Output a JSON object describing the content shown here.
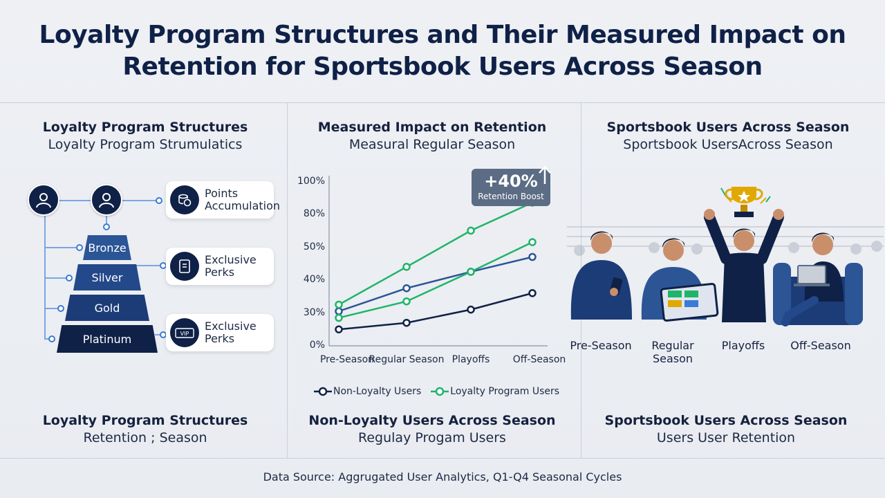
{
  "title": "Loyalty Program Structures and Their Measured Impact on Retention for Sportsbook Users Across Season",
  "panel1": {
    "head": "Loyalty Program Structures",
    "sub": "Loyalty Program Strumulatics",
    "tiers": [
      "Bronze",
      "Silver",
      "Gold",
      "Platinum"
    ],
    "cards": [
      {
        "line1": "Points",
        "line2": "Accumulation",
        "icon": "coins-icon"
      },
      {
        "line1": "Exclusive",
        "line2": "Perks",
        "icon": "gift-card-icon"
      },
      {
        "line1": "Exclusive",
        "line2": "Perks",
        "icon": "vip-ticket-icon"
      }
    ],
    "vip_text": "VIP",
    "foot_head": "Loyalty Program Structures",
    "foot_sub": "Retention ; Season"
  },
  "panel2": {
    "head": "Measured Impact on Retention",
    "sub": "Measural Regular Season",
    "badge_value": "+40%",
    "badge_label": "Retention Boost",
    "foot_head": "Non-Loyalty Users Across Season",
    "foot_sub": "Regulay Progam Users"
  },
  "panel3": {
    "head": "Sportsbook Users Across Season",
    "sub": "Sportsbook UsersAcross Season",
    "labels": [
      "Pre-Season",
      "Regular\nSeason",
      "Playoffs",
      "Off-Season"
    ],
    "foot_head": "Sportsbook Users Across Season",
    "foot_sub": "Users User Retention"
  },
  "source": "Data Source: Aggrugated User Analytics, Q1-Q4 Seasonal Cycles",
  "colors": {
    "navy": "#0f2147",
    "blue": "#2c5596",
    "green": "#1fb46a",
    "badge": "#5b6c84"
  },
  "chart_data": {
    "type": "line",
    "categories": [
      "Pre-Season",
      "Regular Season",
      "Playoffs",
      "Off-Season"
    ],
    "yticks": [
      "0%",
      "30%",
      "40%",
      "50%",
      "80%",
      "100%"
    ],
    "series": [
      {
        "name": "Non-Loyalty Users",
        "color": "#0f2147",
        "values": [
          10,
          14,
          22,
          32
        ],
        "legend": true
      },
      {
        "name": "",
        "color": "#2c5596",
        "values": [
          21,
          35,
          45,
          54
        ],
        "legend": false
      },
      {
        "name": "",
        "color": "#1fb46a",
        "values": [
          17,
          27,
          45,
          63
        ],
        "legend": false
      },
      {
        "name": "Loyalty Program Users",
        "color": "#1fb46a",
        "values": [
          25,
          48,
          70,
          87
        ],
        "legend": true
      }
    ],
    "ylim": [
      0,
      100
    ]
  }
}
